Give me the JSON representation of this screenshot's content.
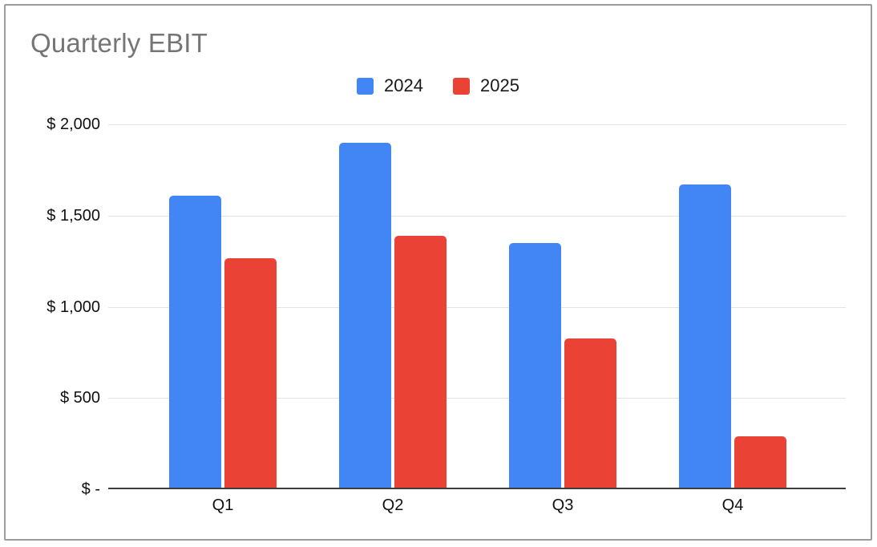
{
  "chart_data": {
    "type": "bar",
    "title": "Quarterly EBIT",
    "categories": [
      "Q1",
      "Q2",
      "Q3",
      "Q4"
    ],
    "series": [
      {
        "name": "2024",
        "color": "#4285F4",
        "values": [
          1610,
          1900,
          1350,
          1670
        ]
      },
      {
        "name": "2025",
        "color": "#EA4335",
        "values": [
          1265,
          1390,
          825,
          290
        ]
      }
    ],
    "ylim": [
      0,
      2000
    ],
    "ytick_values": [
      0,
      500,
      1000,
      1500,
      2000
    ],
    "ytick_labels": [
      "$ -",
      "$ 500",
      "$ 1,000",
      "$ 1,500",
      "$ 2,000"
    ],
    "grid": true,
    "legend_position": "top-center"
  },
  "style": {
    "title_color": "#757575",
    "legend_text_color": "#1a1a1a",
    "axis_label_color": "#111111",
    "gridline_color": "#e3e3e3",
    "axis_line_color": "#3d3d3d",
    "frame_border_color": "#9b9b9b",
    "background": "#ffffff"
  }
}
